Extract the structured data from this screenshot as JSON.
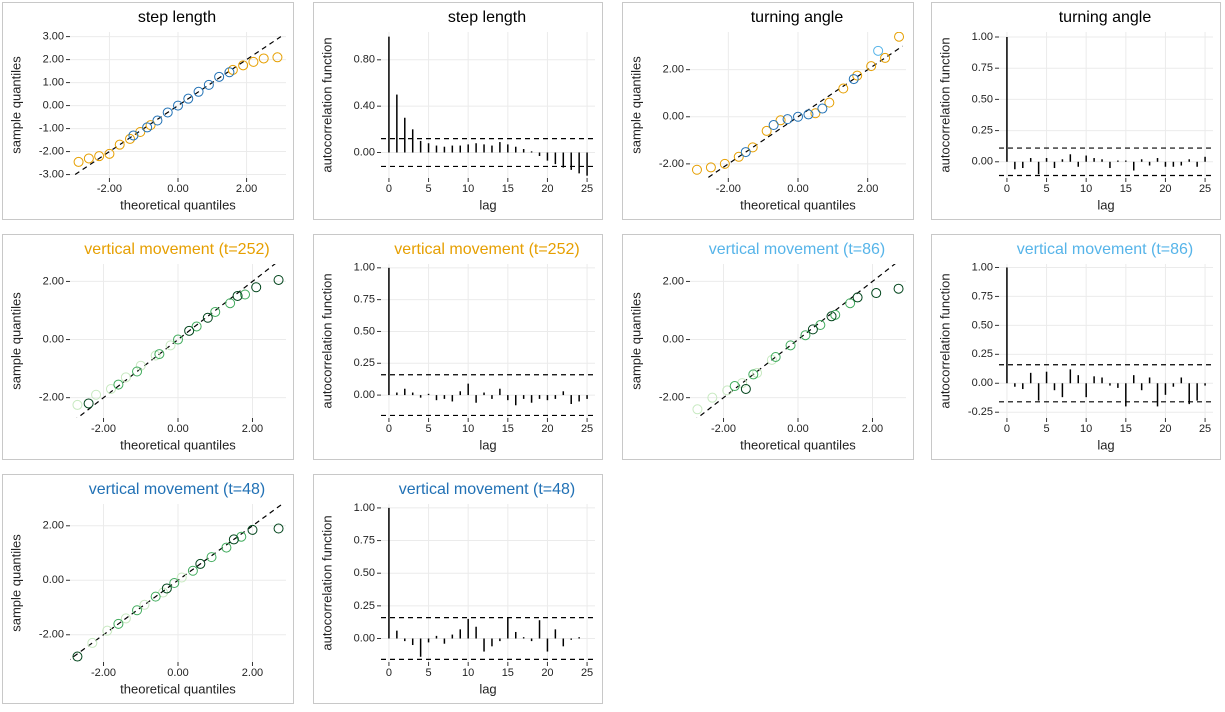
{
  "chart_data": [
    {
      "type": "scatter",
      "title": "step length",
      "title_color": "#000000",
      "x_label": "theoretical quantiles",
      "y_label": "sample quantiles",
      "xlim": [
        -3.15,
        3.15
      ],
      "ylim": [
        -3.15,
        3.2
      ],
      "xticks": [
        {
          "value": -2,
          "label": "-2.00"
        },
        {
          "value": 0,
          "label": "0.00"
        },
        {
          "value": 2,
          "label": "2.00"
        }
      ],
      "yticks": [
        {
          "value": -3,
          "label": "-3.00"
        },
        {
          "value": -2,
          "label": "-2.00"
        },
        {
          "value": -1,
          "label": "-1.00"
        },
        {
          "value": 0,
          "label": "0.00"
        },
        {
          "value": 1,
          "label": "1.00"
        },
        {
          "value": 2,
          "label": "2.00"
        },
        {
          "value": 3,
          "label": "3.00"
        }
      ],
      "reference_line": {
        "x": [
          -3,
          3
        ],
        "y": [
          -3,
          3
        ]
      },
      "series": [
        {
          "color": "#E69F00",
          "x": [
            -2.9,
            -2.6,
            -2.3,
            -2.0,
            -1.7,
            -1.4,
            -1.1,
            -0.8,
            1.6,
            1.9,
            2.2,
            2.5,
            2.9
          ],
          "values": [
            -2.45,
            -2.3,
            -2.2,
            -2.1,
            -1.7,
            -1.45,
            -1.15,
            -0.85,
            1.55,
            1.75,
            1.9,
            2.05,
            2.1
          ]
        },
        {
          "color": "#2171B5",
          "x": [
            -1.3,
            -0.9,
            -0.6,
            -0.3,
            0,
            0.3,
            0.6,
            0.9,
            1.2,
            1.5
          ],
          "values": [
            -1.3,
            -0.95,
            -0.65,
            -0.3,
            0,
            0.3,
            0.6,
            0.9,
            1.25,
            1.45
          ]
        }
      ]
    },
    {
      "type": "acf",
      "title": "step length",
      "title_color": "#000000",
      "x_label": "lag",
      "y_label": "autocorrelation function",
      "xlim": [
        -1,
        26
      ],
      "ylim": [
        -0.22,
        1.04
      ],
      "xticks": [
        0,
        5,
        10,
        15,
        20,
        25
      ],
      "yticks": [
        {
          "value": 0,
          "label": "0.00"
        },
        {
          "value": 0.4,
          "label": "0.40"
        },
        {
          "value": 0.8,
          "label": "0.80"
        }
      ],
      "conf_bounds": [
        0.12,
        -0.12
      ],
      "values": [
        1,
        0.5,
        0.3,
        0.2,
        0.1,
        0.08,
        0.06,
        0.05,
        0.06,
        0.06,
        0.07,
        0.08,
        0.07,
        0.06,
        0.09,
        0.07,
        0.05,
        0.03,
        0.01,
        -0.03,
        -0.07,
        -0.1,
        -0.13,
        -0.15,
        -0.18,
        -0.2
      ]
    },
    {
      "type": "scatter",
      "title": "turning angle",
      "title_color": "#000000",
      "x_label": "theoretical quantiles",
      "y_label": "sample quantiles",
      "xlim": [
        -3.1,
        3.1
      ],
      "ylim": [
        -2.6,
        3.6
      ],
      "xticks": [
        {
          "value": -2,
          "label": "-2.00"
        },
        {
          "value": 0,
          "label": "0.00"
        },
        {
          "value": 2,
          "label": "2.00"
        }
      ],
      "yticks": [
        {
          "value": -2,
          "label": "-2.00"
        },
        {
          "value": 0,
          "label": "0.00"
        },
        {
          "value": 2,
          "label": "2.00"
        }
      ],
      "reference_line": {
        "x": [
          -3,
          3
        ],
        "y": [
          -3,
          3
        ]
      },
      "series": [
        {
          "color": "#E69F00",
          "x": [
            -2.9,
            -2.5,
            -2.1,
            -1.7,
            -1.3,
            -0.9,
            -0.5,
            0.5,
            0.9,
            1.3,
            1.7,
            2.1,
            2.5,
            2.9
          ],
          "values": [
            -2.25,
            -2.15,
            -2.0,
            -1.7,
            -1.3,
            -0.6,
            -0.15,
            0.15,
            0.6,
            1.2,
            1.75,
            2.15,
            2.5,
            3.4
          ]
        },
        {
          "color": "#2171B5",
          "x": [
            -1.5,
            -0.7,
            -0.3,
            0,
            0.3,
            0.7,
            1.6
          ],
          "values": [
            -1.5,
            -0.35,
            -0.1,
            0,
            0.1,
            0.35,
            1.6
          ]
        },
        {
          "color": "#56B4E9",
          "x": [
            2.3
          ],
          "values": [
            2.8
          ]
        }
      ]
    },
    {
      "type": "acf",
      "title": "turning angle",
      "title_color": "#000000",
      "x_label": "lag",
      "y_label": "autocorrelation function",
      "xlim": [
        -1,
        26
      ],
      "ylim": [
        -0.13,
        1.04
      ],
      "xticks": [
        0,
        5,
        10,
        15,
        20,
        25
      ],
      "yticks": [
        {
          "value": 0,
          "label": "0.00"
        },
        {
          "value": 0.25,
          "label": "0.25"
        },
        {
          "value": 0.5,
          "label": "0.50"
        },
        {
          "value": 0.75,
          "label": "0.75"
        },
        {
          "value": 1,
          "label": "1.00"
        }
      ],
      "conf_bounds": [
        0.11,
        -0.11
      ],
      "values": [
        1,
        -0.06,
        -0.05,
        0.03,
        -0.1,
        0.03,
        -0.05,
        0.02,
        0.06,
        -0.04,
        0.05,
        0.03,
        0.02,
        -0.05,
        0.01,
        0.01,
        -0.07,
        0.02,
        -0.03,
        0.03,
        -0.04,
        -0.04,
        -0.03,
        0.02,
        -0.04,
        0.04
      ]
    },
    {
      "type": "scatter",
      "title": "vertical movement (t=252)",
      "title_color": "#E69F00",
      "x_label": "theoretical quantiles",
      "y_label": "sample quantiles",
      "xlim": [
        -2.9,
        2.9
      ],
      "ylim": [
        -2.7,
        2.6
      ],
      "xticks": [
        {
          "value": -2,
          "label": "-2.00"
        },
        {
          "value": 0,
          "label": "0.00"
        },
        {
          "value": 2,
          "label": "2.00"
        }
      ],
      "yticks": [
        {
          "value": -2,
          "label": "-2.00"
        },
        {
          "value": 0,
          "label": "0.00"
        },
        {
          "value": 2,
          "label": "2.00"
        }
      ],
      "reference_line": {
        "x": [
          -3,
          3
        ],
        "y": [
          -3,
          3
        ]
      },
      "series": [
        {
          "color": "#C7E9C0",
          "x": [
            -2.7,
            -2.2,
            -1.8,
            -1.4,
            -1.0,
            -0.6,
            -0.2
          ],
          "values": [
            -2.25,
            -1.9,
            -1.7,
            -1.3,
            -0.9,
            -0.55,
            -0.2
          ]
        },
        {
          "color": "#41AB5D",
          "x": [
            -1.6,
            -1.1,
            -0.5,
            0,
            0.5,
            1.0,
            1.4,
            1.8
          ],
          "values": [
            -1.55,
            -1.1,
            -0.5,
            0,
            0.45,
            0.95,
            1.25,
            1.55
          ]
        },
        {
          "color": "#00441B",
          "x": [
            -2.4,
            0.3,
            0.8,
            1.6,
            2.1,
            2.7
          ],
          "values": [
            -2.2,
            0.3,
            0.75,
            1.5,
            1.8,
            2.05
          ]
        }
      ]
    },
    {
      "type": "acf",
      "title": "vertical movement (t=252)",
      "title_color": "#E69F00",
      "x_label": "lag",
      "y_label": "autocorrelation function",
      "xlim": [
        -1,
        26
      ],
      "ylim": [
        -0.18,
        1.03
      ],
      "xticks": [
        0,
        5,
        10,
        15,
        20,
        25
      ],
      "yticks": [
        {
          "value": 0,
          "label": "0.00"
        },
        {
          "value": 0.25,
          "label": "0.25"
        },
        {
          "value": 0.5,
          "label": "0.50"
        },
        {
          "value": 0.75,
          "label": "0.75"
        },
        {
          "value": 1,
          "label": "1.00"
        }
      ],
      "conf_bounds": [
        0.16,
        -0.16
      ],
      "values": [
        1,
        0.02,
        0.05,
        0.02,
        -0.02,
        0.01,
        -0.04,
        -0.03,
        -0.05,
        0.03,
        0.09,
        -0.06,
        0.02,
        -0.03,
        0.05,
        -0.04,
        -0.08,
        -0.03,
        -0.06,
        -0.03,
        -0.04,
        -0.03,
        0.03,
        -0.07,
        -0.05,
        -0.03
      ]
    },
    {
      "type": "scatter",
      "title": "vertical movement (t=86)",
      "title_color": "#56B4E9",
      "x_label": "theoretical quantiles",
      "y_label": "sample quantiles",
      "xlim": [
        -2.9,
        2.9
      ],
      "ylim": [
        -2.7,
        2.6
      ],
      "xticks": [
        {
          "value": -2,
          "label": "-2.00"
        },
        {
          "value": 0,
          "label": "0.00"
        },
        {
          "value": 2,
          "label": "2.00"
        }
      ],
      "yticks": [
        {
          "value": -2,
          "label": "-2.00"
        },
        {
          "value": 0,
          "label": "0.00"
        },
        {
          "value": 2,
          "label": "2.00"
        }
      ],
      "reference_line": {
        "x": [
          -3,
          3
        ],
        "y": [
          -3,
          3
        ]
      },
      "series": [
        {
          "color": "#C7E9C0",
          "x": [
            -2.7,
            -2.3,
            -1.9,
            -1.5,
            -1.1,
            -0.7
          ],
          "values": [
            -2.4,
            -2.0,
            -1.75,
            -1.5,
            -1.15,
            -0.7
          ]
        },
        {
          "color": "#41AB5D",
          "x": [
            -1.7,
            -1.2,
            -0.6,
            -0.2,
            0.2,
            0.6,
            1.0,
            1.4
          ],
          "values": [
            -1.6,
            -1.2,
            -0.6,
            -0.2,
            0.15,
            0.5,
            0.85,
            1.25
          ]
        },
        {
          "color": "#00441B",
          "x": [
            -1.4,
            0.4,
            0.9,
            1.6,
            2.1,
            2.7
          ],
          "values": [
            -1.7,
            0.35,
            0.8,
            1.45,
            1.6,
            1.75
          ]
        }
      ]
    },
    {
      "type": "acf",
      "title": "vertical movement (t=86)",
      "title_color": "#56B4E9",
      "x_label": "lag",
      "y_label": "autocorrelation function",
      "xlim": [
        -1,
        26
      ],
      "ylim": [
        -0.3,
        1.03
      ],
      "xticks": [
        0,
        5,
        10,
        15,
        20,
        25
      ],
      "yticks": [
        {
          "value": -0.25,
          "label": "-0.25"
        },
        {
          "value": 0,
          "label": "0.00"
        },
        {
          "value": 0.25,
          "label": "0.25"
        },
        {
          "value": 0.5,
          "label": "0.50"
        },
        {
          "value": 0.75,
          "label": "0.75"
        },
        {
          "value": 1,
          "label": "1.00"
        }
      ],
      "conf_bounds": [
        0.16,
        -0.16
      ],
      "values": [
        1,
        -0.03,
        -0.05,
        0.09,
        -0.15,
        0.1,
        -0.06,
        -0.12,
        0.12,
        0.07,
        -0.12,
        0.06,
        0.05,
        -0.02,
        -0.04,
        -0.2,
        0.07,
        -0.06,
        0.05,
        -0.2,
        -0.1,
        -0.03,
        0.05,
        -0.18,
        -0.15,
        -0.02
      ]
    },
    {
      "type": "scatter",
      "title": "vertical movement (t=48)",
      "title_color": "#2171B5",
      "x_label": "theoretical quantiles",
      "y_label": "sample quantiles",
      "xlim": [
        -2.9,
        2.9
      ],
      "ylim": [
        -3.0,
        2.8
      ],
      "xticks": [
        {
          "value": -2,
          "label": "-2.00"
        },
        {
          "value": 0,
          "label": "0.00"
        },
        {
          "value": 2,
          "label": "2.00"
        }
      ],
      "yticks": [
        {
          "value": -2,
          "label": "-2.00"
        },
        {
          "value": 0,
          "label": "0.00"
        },
        {
          "value": 2,
          "label": "2.00"
        }
      ],
      "reference_line": {
        "x": [
          -3,
          3
        ],
        "y": [
          -3,
          3
        ]
      },
      "series": [
        {
          "color": "#C7E9C0",
          "x": [
            -2.3,
            -1.9,
            -1.4,
            -0.9,
            -0.4,
            0.1
          ],
          "values": [
            -2.3,
            -1.85,
            -1.4,
            -0.9,
            -0.45,
            0.1
          ]
        },
        {
          "color": "#41AB5D",
          "x": [
            -1.6,
            -1.1,
            -0.6,
            -0.1,
            0.4,
            0.9,
            1.3,
            1.7
          ],
          "values": [
            -1.6,
            -1.1,
            -0.6,
            -0.1,
            0.35,
            0.85,
            1.2,
            1.6
          ]
        },
        {
          "color": "#00441B",
          "x": [
            -2.7,
            -0.3,
            0.6,
            1.5,
            2.0,
            2.7
          ],
          "values": [
            -2.8,
            -0.3,
            0.6,
            1.5,
            1.85,
            1.9
          ]
        }
      ]
    },
    {
      "type": "acf",
      "title": "vertical movement (t=48)",
      "title_color": "#2171B5",
      "x_label": "lag",
      "y_label": "autocorrelation function",
      "xlim": [
        -1,
        26
      ],
      "ylim": [
        -0.18,
        1.03
      ],
      "xticks": [
        0,
        5,
        10,
        15,
        20,
        25
      ],
      "yticks": [
        {
          "value": 0,
          "label": "0.00"
        },
        {
          "value": 0.25,
          "label": "0.25"
        },
        {
          "value": 0.5,
          "label": "0.50"
        },
        {
          "value": 0.75,
          "label": "0.75"
        },
        {
          "value": 1,
          "label": "1.00"
        }
      ],
      "conf_bounds": [
        0.16,
        -0.16
      ],
      "values": [
        1,
        0.06,
        -0.02,
        -0.05,
        -0.14,
        -0.03,
        0.02,
        -0.04,
        0.03,
        0.07,
        0.15,
        0.09,
        -0.1,
        -0.06,
        -0.02,
        0.16,
        0.05,
        0.01,
        -0.02,
        0.14,
        -0.1,
        0.07,
        -0.06,
        -0.01,
        0.01,
        0.0
      ]
    }
  ]
}
